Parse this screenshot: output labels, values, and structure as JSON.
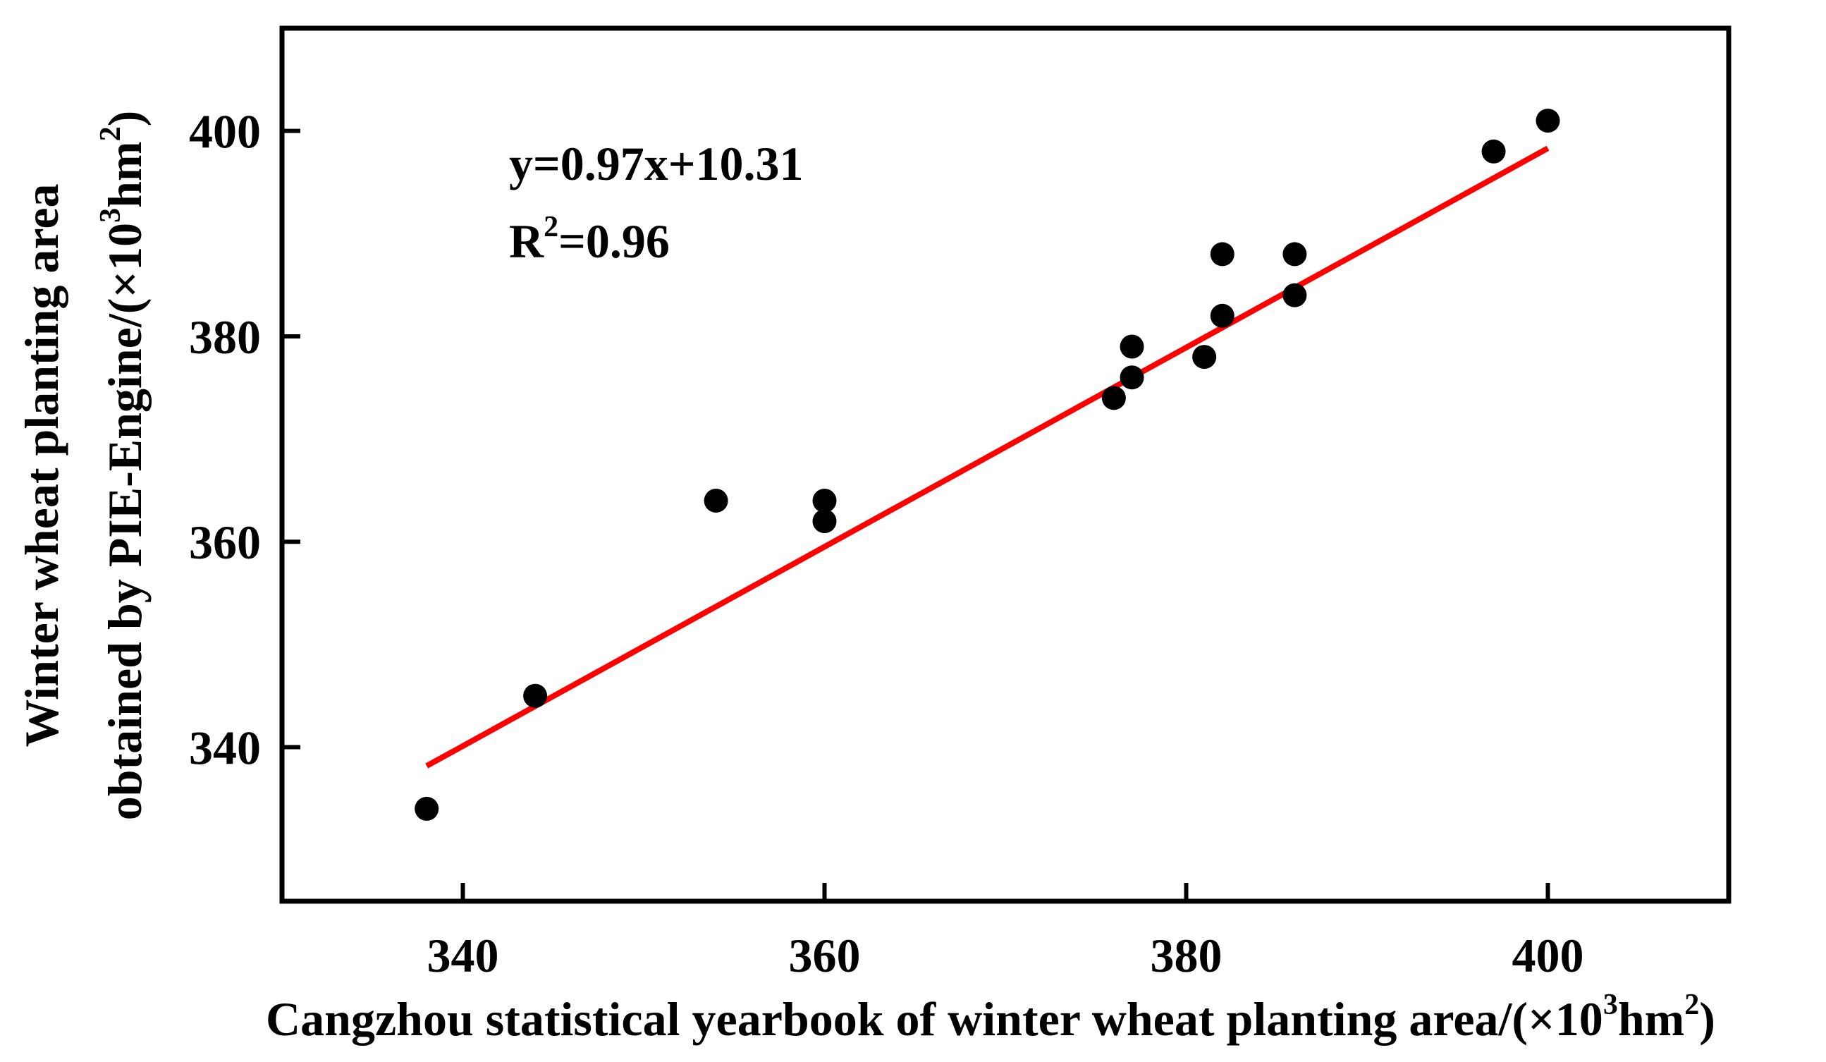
{
  "chart_data": {
    "type": "scatter",
    "title": "",
    "xlabel": {
      "main": "Cangzhou statistical yearbook of winter wheat planting area/(×10",
      "sup1": "3",
      "mid": "hm",
      "sup2": "2",
      "end": ")"
    },
    "ylabel": {
      "line1": "Winter wheat planting area",
      "line2_main": "obtained by PIE-Engine/(×10",
      "line2_sup1": "3",
      "line2_mid": "hm",
      "line2_sup2": "2",
      "line2_end": ")"
    },
    "xlim": [
      330,
      410
    ],
    "ylim": [
      325,
      410
    ],
    "xticks": [
      340,
      360,
      380,
      400
    ],
    "yticks": [
      340,
      360,
      380,
      400
    ],
    "x": [
      338,
      344,
      354,
      360,
      360,
      376,
      377,
      377,
      381,
      382,
      382,
      386,
      386,
      397,
      400
    ],
    "y": [
      334,
      345,
      364,
      364,
      362,
      374,
      379,
      376,
      378,
      388,
      382,
      388,
      384,
      398,
      401
    ],
    "fit": {
      "slope": 0.97,
      "intercept": 10.31,
      "x_range": [
        338,
        400
      ],
      "color": "#ff0000"
    },
    "equation": "y=0.97x+10.31",
    "r2": {
      "prefix": "R",
      "sup": "2",
      "value": "=0.96"
    },
    "point_color": "#000000",
    "grid": false,
    "legend": "none"
  }
}
